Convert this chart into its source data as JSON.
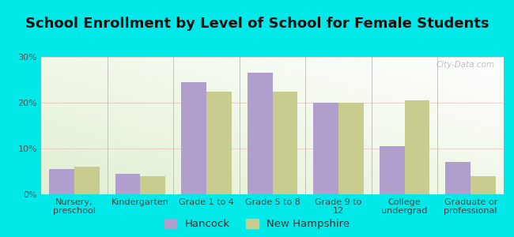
{
  "title": "School Enrollment by Level of School for Female Students",
  "categories": [
    "Nursery,\npreschool",
    "Kindergarten",
    "Grade 1 to 4",
    "Grade 5 to 8",
    "Grade 9 to\n12",
    "College\nundergrad",
    "Graduate or\nprofessional"
  ],
  "hancock_values": [
    5.5,
    4.5,
    24.5,
    26.5,
    20.0,
    10.5,
    7.0
  ],
  "nh_values": [
    6.0,
    4.0,
    22.5,
    22.5,
    20.0,
    20.5,
    4.0
  ],
  "hancock_color": "#b09fcc",
  "nh_color": "#c8cc8f",
  "ylim": [
    0,
    30
  ],
  "yticks": [
    0,
    10,
    20,
    30
  ],
  "ytick_labels": [
    "0%",
    "10%",
    "20%",
    "30%"
  ],
  "background_color": "#00e8e8",
  "plot_bg_color": "#e8f0d8",
  "legend_hancock": "Hancock",
  "legend_nh": "New Hampshire",
  "watermark": "City-Data.com",
  "bar_width": 0.38,
  "title_fontsize": 13,
  "tick_fontsize": 8,
  "legend_fontsize": 9.5
}
